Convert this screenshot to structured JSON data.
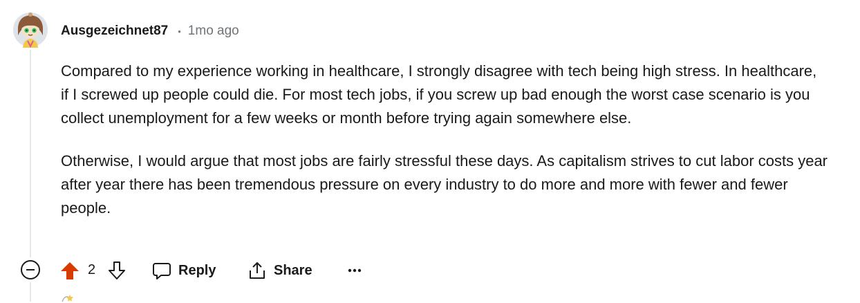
{
  "comment": {
    "username": "Ausgezeichnet87",
    "separator": "•",
    "timestamp": "1mo ago",
    "paragraphs": [
      "Compared to my experience working in healthcare, I strongly disagree with tech being high stress. In healthcare, if I screwed up people could die. For most tech jobs, if you screw up bad enough the worst case scenario is you collect unemployment for a few weeks or month before trying again somewhere else.",
      "Otherwise, I would argue that most jobs are fairly stressful these days. As capitalism strives to cut labor costs year after year there has been tremendous pressure on every industry to do more and more with fewer and fewer people."
    ],
    "vote_count": "2",
    "upvote_color": "#d93a00"
  },
  "actions": {
    "reply_label": "Reply",
    "share_label": "Share"
  },
  "icons": {
    "collapse": "collapse-circle-minus-icon",
    "upvote": "upvote-arrow-icon",
    "downvote": "downvote-arrow-icon",
    "reply": "speech-bubble-icon",
    "share": "share-arrow-icon",
    "more": "more-dots-icon",
    "avatar": "snoo-avatar"
  }
}
